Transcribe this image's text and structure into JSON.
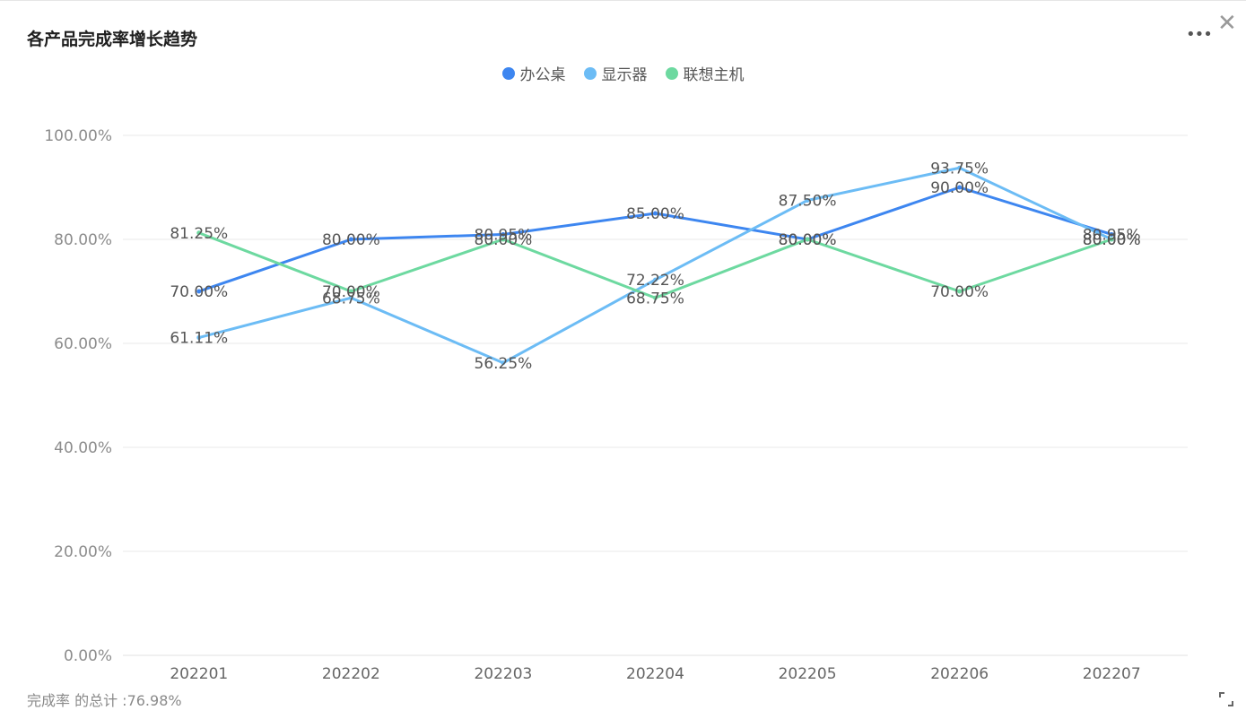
{
  "header": {
    "title": "各产品完成率增长趋势",
    "more_icon": "more-dots-icon",
    "close_icon": "close-icon"
  },
  "footer": {
    "summary": "完成率 的总计 :76.98%"
  },
  "chart_data": {
    "type": "line",
    "categories": [
      "202201",
      "202202",
      "202203",
      "202204",
      "202205",
      "202206",
      "202207"
    ],
    "y_ticks": [
      "0.00%",
      "20.00%",
      "40.00%",
      "60.00%",
      "80.00%",
      "100.00%"
    ],
    "ylim": [
      0,
      100
    ],
    "grid": true,
    "legend_position": "top-center",
    "series": [
      {
        "name": "办公桌",
        "color": "#3d86f0",
        "values": [
          70.0,
          80.0,
          80.95,
          85.0,
          80.0,
          90.0,
          80.95
        ],
        "labels": [
          "70.00%",
          "80.00%",
          "80.95%",
          "85.00%",
          "80.00%",
          "90.00%",
          "80.95%"
        ]
      },
      {
        "name": "显示器",
        "color": "#6cbcf5",
        "values": [
          61.11,
          68.75,
          56.25,
          72.22,
          87.5,
          93.75,
          80.0
        ],
        "labels": [
          "61.11%",
          "68.75%",
          "56.25%",
          "72.22%",
          "87.50%",
          "93.75%",
          "80.00%"
        ]
      },
      {
        "name": "联想主机",
        "color": "#6dd9a0",
        "values": [
          81.25,
          70.0,
          80.0,
          68.75,
          80.0,
          70.0,
          80.0
        ],
        "labels": [
          "81.25%",
          "70.00%",
          "80.00%",
          "68.75%",
          "80.00%",
          "70.00%",
          "80.00%"
        ]
      }
    ]
  }
}
